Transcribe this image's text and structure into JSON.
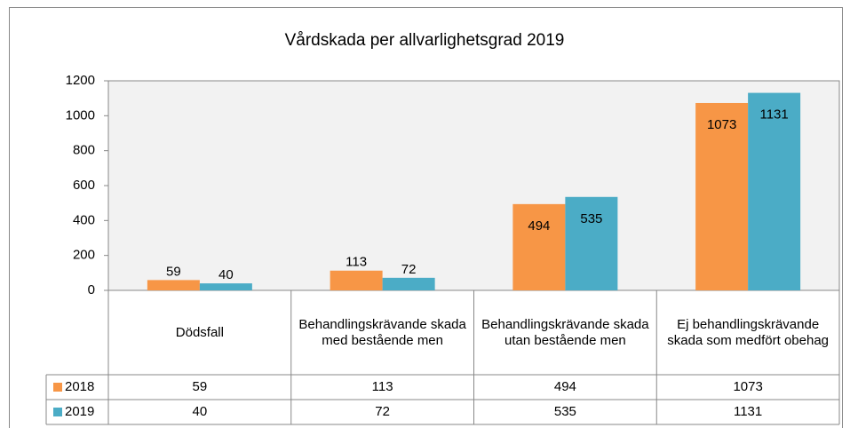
{
  "chart_data": {
    "type": "bar",
    "title": "Vårdskada per allvarlighetsgrad 2019",
    "categories": [
      "Dödsfall",
      "Behandlingskrävande skada med bestående men",
      "Behandlingskrävande skada utan bestående men",
      "Ej behandlingskrävande skada som medfört obehag"
    ],
    "series": [
      {
        "name": "2018",
        "color": "#f79646",
        "values": [
          59,
          113,
          494,
          1073
        ]
      },
      {
        "name": "2019",
        "color": "#4bacc6",
        "values": [
          40,
          72,
          535,
          1131
        ]
      }
    ],
    "ylim": [
      0,
      1200
    ],
    "yticks": [
      0,
      200,
      400,
      600,
      800,
      1000,
      1200
    ],
    "grid": false,
    "data_table": true
  }
}
